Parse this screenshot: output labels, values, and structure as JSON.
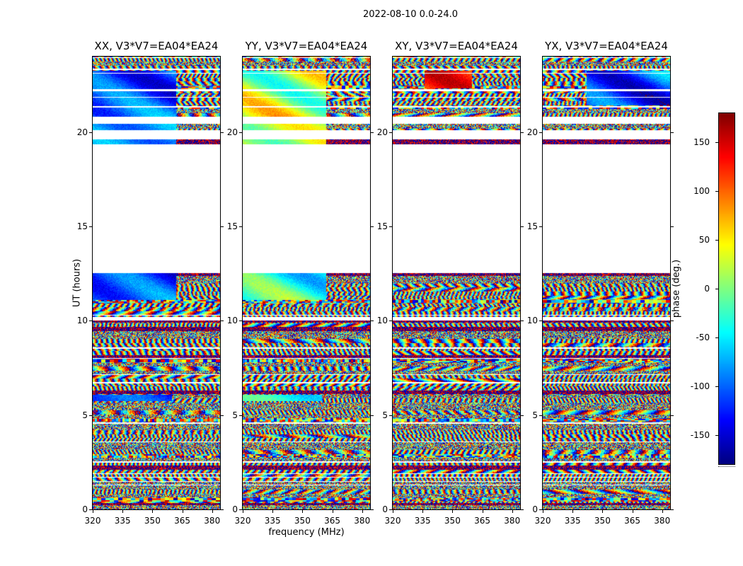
{
  "chart_data": {
    "type": "heatmap",
    "title": "2022-08-10 0.0-24.0",
    "xlabel": "frequency (MHz)",
    "ylabel": "UT (hours)",
    "value_label": "phase (deg.)",
    "panels": [
      {
        "pol": "XX",
        "title": "XX, V3*V7=EA04*EA24"
      },
      {
        "pol": "YY",
        "title": "YY, V3*V7=EA04*EA24"
      },
      {
        "pol": "XY",
        "title": "XY, V3*V7=EA04*EA24"
      },
      {
        "pol": "YX",
        "title": "YX, V3*V7=EA04*EA24"
      }
    ],
    "x_ticks": [
      320,
      335,
      350,
      365,
      380
    ],
    "x_range": [
      320,
      384
    ],
    "y_ticks": [
      0,
      5,
      10,
      15,
      20
    ],
    "y_range": [
      0,
      24
    ],
    "colorbar": {
      "label": "phase (deg.)",
      "ticks": [
        150,
        100,
        50,
        0,
        -50,
        -100,
        -150
      ],
      "range": [
        -180,
        180
      ],
      "colormap": "jet"
    },
    "time_segments_with_data": [
      [
        0,
        12.52
      ],
      [
        19.35,
        19.62
      ],
      [
        20.1,
        20.45
      ],
      [
        20.82,
        24.0
      ]
    ],
    "gaps": [
      [
        23.28,
        23.35
      ],
      [
        22.18,
        22.26
      ],
      [
        21.3,
        21.38
      ],
      [
        10.02,
        10.2
      ],
      [
        8.52,
        8.58
      ],
      [
        6.68,
        6.74
      ],
      [
        4.54,
        4.6
      ],
      [
        2.48,
        2.54
      ],
      [
        1.28,
        1.33
      ]
    ],
    "dense_bands": [
      [
        6.1,
        6.3
      ],
      [
        9.9,
        10.0
      ],
      [
        0.22,
        0.34
      ],
      [
        12.38,
        12.52
      ]
    ],
    "scan_row_hours": 0.21,
    "features": [
      {
        "panel": 0,
        "t": [
          20.82,
          23.25
        ],
        "f": [
          320,
          362
        ],
        "base": -100,
        "amp": 40
      },
      {
        "panel": 0,
        "t": [
          19.35,
          19.62
        ],
        "f": [
          320,
          362
        ],
        "base": -95,
        "amp": 30
      },
      {
        "panel": 0,
        "t": [
          20.1,
          20.45
        ],
        "f": [
          320,
          362
        ],
        "base": -95,
        "amp": 30
      },
      {
        "panel": 0,
        "t": [
          11.1,
          12.52
        ],
        "f": [
          320,
          362
        ],
        "base": -105,
        "amp": 40
      },
      {
        "panel": 0,
        "t": [
          5.72,
          6.08
        ],
        "f": [
          320,
          360
        ],
        "base": -125,
        "amp": 20
      },
      {
        "panel": 1,
        "t": [
          20.82,
          23.25
        ],
        "f": [
          320,
          362
        ],
        "base": 25,
        "amp": 50
      },
      {
        "panel": 1,
        "t": [
          19.35,
          19.62
        ],
        "f": [
          320,
          362
        ],
        "base": 5,
        "amp": 35
      },
      {
        "panel": 1,
        "t": [
          20.1,
          20.45
        ],
        "f": [
          320,
          362
        ],
        "base": 5,
        "amp": 35
      },
      {
        "panel": 1,
        "t": [
          11.1,
          12.52
        ],
        "f": [
          320,
          362
        ],
        "base": -25,
        "amp": 40
      },
      {
        "panel": 1,
        "t": [
          5.72,
          6.08
        ],
        "f": [
          320,
          360
        ],
        "base": -50,
        "amp": 25
      },
      {
        "panel": 2,
        "t": [
          22.3,
          23.25
        ],
        "f": [
          336,
          360
        ],
        "base": 135,
        "amp": 40
      },
      {
        "panel": 3,
        "t": [
          21.4,
          23.25
        ],
        "f": [
          342,
          384
        ],
        "base": -105,
        "amp": 45
      }
    ]
  }
}
